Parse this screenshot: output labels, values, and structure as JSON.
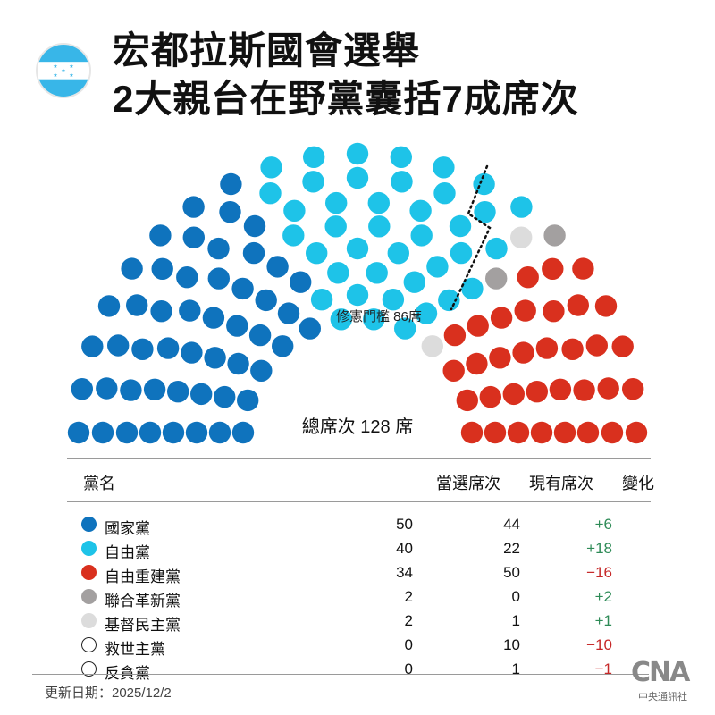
{
  "title": {
    "line1": "宏都拉斯國會選舉",
    "line2": "2大親台在野黨囊括7成席次"
  },
  "flag_icon": "honduras-flag",
  "chart_data": {
    "type": "parliament",
    "total_seats": 128,
    "total_label": "總席次 128 席",
    "threshold_label": "修憲門檻 86席",
    "threshold_seats": 86,
    "parties": [
      {
        "name": "國家黨",
        "won": 50,
        "current": 44,
        "change": "+6",
        "color": "#0f73bd",
        "change_color": "#2e8b57"
      },
      {
        "name": "自由黨",
        "won": 40,
        "current": 22,
        "change": "+18",
        "color": "#1ec3e8",
        "change_color": "#2e8b57"
      },
      {
        "name": "自由重建黨",
        "won": 34,
        "current": 50,
        "change": "−16",
        "color": "#d9301e",
        "change_color": "#c62828"
      },
      {
        "name": "聯合革新黨",
        "won": 2,
        "current": 0,
        "change": "+2",
        "color": "#a3a0a0",
        "change_color": "#2e8b57"
      },
      {
        "name": "基督民主黨",
        "won": 2,
        "current": 1,
        "change": "+1",
        "color": "#dcdcdc",
        "change_color": "#2e8b57"
      },
      {
        "name": "救世主黨",
        "won": 0,
        "current": 10,
        "change": "−10",
        "color": "#ffffff",
        "change_color": "#c62828"
      },
      {
        "name": "反貪黨",
        "won": 0,
        "current": 1,
        "change": "−1",
        "color": "#ffffff",
        "change_color": "#c62828"
      }
    ]
  },
  "table": {
    "header": {
      "name": "黨名",
      "won": "當選席次",
      "current": "現有席次",
      "change": "變化"
    }
  },
  "footer": {
    "updated": "更新日期：2025/12/2"
  },
  "logo": {
    "mark": "CNA",
    "text": "中央通訊社"
  }
}
